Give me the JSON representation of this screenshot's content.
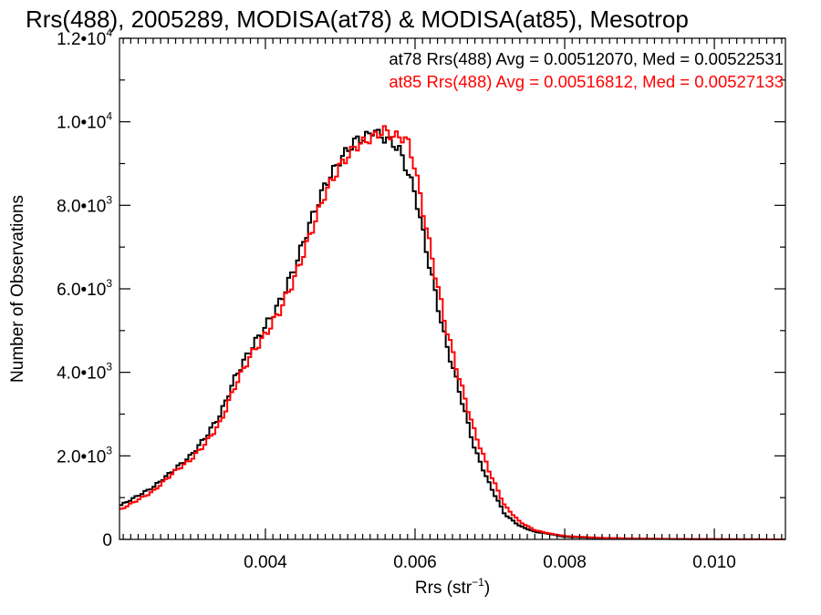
{
  "colors": {
    "background": "#ffffff",
    "axes": "#000000",
    "at78": "#000000",
    "at85": "#ff0000"
  },
  "chart_data": {
    "type": "line",
    "style": "step histogram",
    "title": "Rrs(488), 2005289, MODISA(at78) & MODISA(at85), Mesotrop",
    "xlabel_main": "Rrs (str",
    "xlabel_sup": "−1",
    "xlabel_end": ")",
    "ylabel": "Number of Observations",
    "xlim": [
      0.00205,
      0.01095
    ],
    "ylim": [
      0,
      12000
    ],
    "grid": false,
    "legend_position": "top-right",
    "xticks": [
      {
        "value": 0.004,
        "label": "0.004"
      },
      {
        "value": 0.006,
        "label": "0.006"
      },
      {
        "value": 0.008,
        "label": "0.008"
      },
      {
        "value": 0.01,
        "label": "0.010"
      }
    ],
    "yticks": [
      {
        "value": 0,
        "mant": "0",
        "exp": ""
      },
      {
        "value": 2000,
        "mant": "2.0•10",
        "exp": "3"
      },
      {
        "value": 4000,
        "mant": "4.0•10",
        "exp": "3"
      },
      {
        "value": 6000,
        "mant": "6.0•10",
        "exp": "3"
      },
      {
        "value": 8000,
        "mant": "8.0•10",
        "exp": "3"
      },
      {
        "value": 10000,
        "mant": "1.0•10",
        "exp": "4"
      },
      {
        "value": 12000,
        "mant": "1.2•10",
        "exp": "4"
      }
    ],
    "series": [
      {
        "name": "at78",
        "legend": "at78 Rrs(488) Avg = 0.00512070, Med = 0.00522531",
        "color": "#000000",
        "x": [
          0.00205,
          0.0025,
          0.0028,
          0.003,
          0.0032,
          0.0034,
          0.0036,
          0.0038,
          0.004,
          0.0042,
          0.0044,
          0.0046,
          0.0048,
          0.005,
          0.0052,
          0.0053,
          0.0054,
          0.00545,
          0.0055,
          0.0056,
          0.0057,
          0.0058,
          0.006,
          0.0062,
          0.0064,
          0.0066,
          0.0068,
          0.007,
          0.0072,
          0.0074,
          0.0076,
          0.0078,
          0.008,
          0.0085,
          0.009,
          0.0095,
          0.01,
          0.01095
        ],
        "y": [
          800,
          1250,
          1700,
          2000,
          2450,
          3000,
          3900,
          4550,
          5100,
          5700,
          6550,
          7600,
          8500,
          9100,
          9550,
          9600,
          9700,
          9850,
          9700,
          9600,
          9500,
          9300,
          8300,
          6500,
          4800,
          3500,
          2150,
          1300,
          600,
          320,
          180,
          130,
          60,
          30,
          15,
          8,
          4,
          0
        ]
      },
      {
        "name": "at85",
        "legend": "at85 Rrs(488) Avg = 0.00516812, Med = 0.00527133",
        "color": "#ff0000",
        "x": [
          0.00205,
          0.0025,
          0.0028,
          0.003,
          0.0032,
          0.0034,
          0.0036,
          0.0038,
          0.004,
          0.0042,
          0.0044,
          0.0046,
          0.0048,
          0.005,
          0.0052,
          0.0053,
          0.0054,
          0.0055,
          0.0056,
          0.0057,
          0.0058,
          0.0059,
          0.006,
          0.0062,
          0.0064,
          0.0066,
          0.0068,
          0.007,
          0.0072,
          0.0074,
          0.0076,
          0.0078,
          0.008,
          0.0085,
          0.009,
          0.0095,
          0.01,
          0.01095
        ],
        "y": [
          700,
          1150,
          1650,
          1900,
          2300,
          2800,
          3700,
          4400,
          4900,
          5500,
          6300,
          7300,
          8300,
          8950,
          9400,
          9500,
          9600,
          9700,
          9800,
          9650,
          9650,
          9550,
          8900,
          7000,
          5200,
          3800,
          2550,
          1600,
          800,
          420,
          220,
          140,
          80,
          35,
          20,
          10,
          5,
          0
        ]
      }
    ]
  }
}
